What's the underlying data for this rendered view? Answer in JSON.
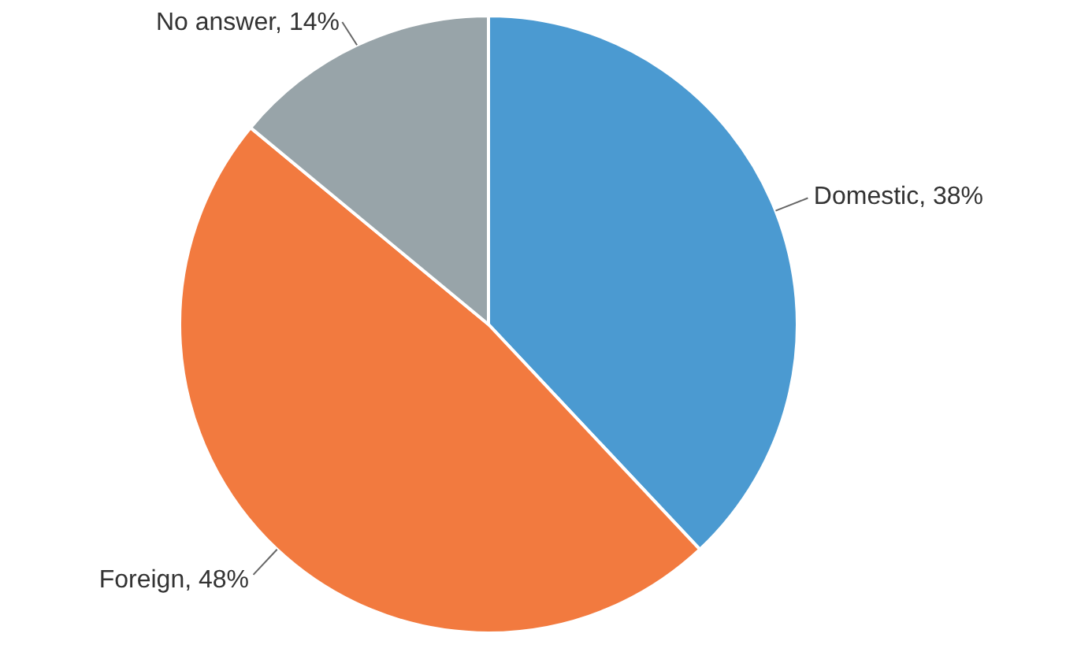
{
  "chart_data": {
    "type": "pie",
    "categories": [
      "Domestic",
      "Foreign",
      "No answer"
    ],
    "values": [
      38,
      48,
      14
    ],
    "value_labels": [
      "38%",
      "48%",
      "14%"
    ],
    "colors": [
      "#4b9ad1",
      "#f27a3f",
      "#98a4a9"
    ]
  }
}
